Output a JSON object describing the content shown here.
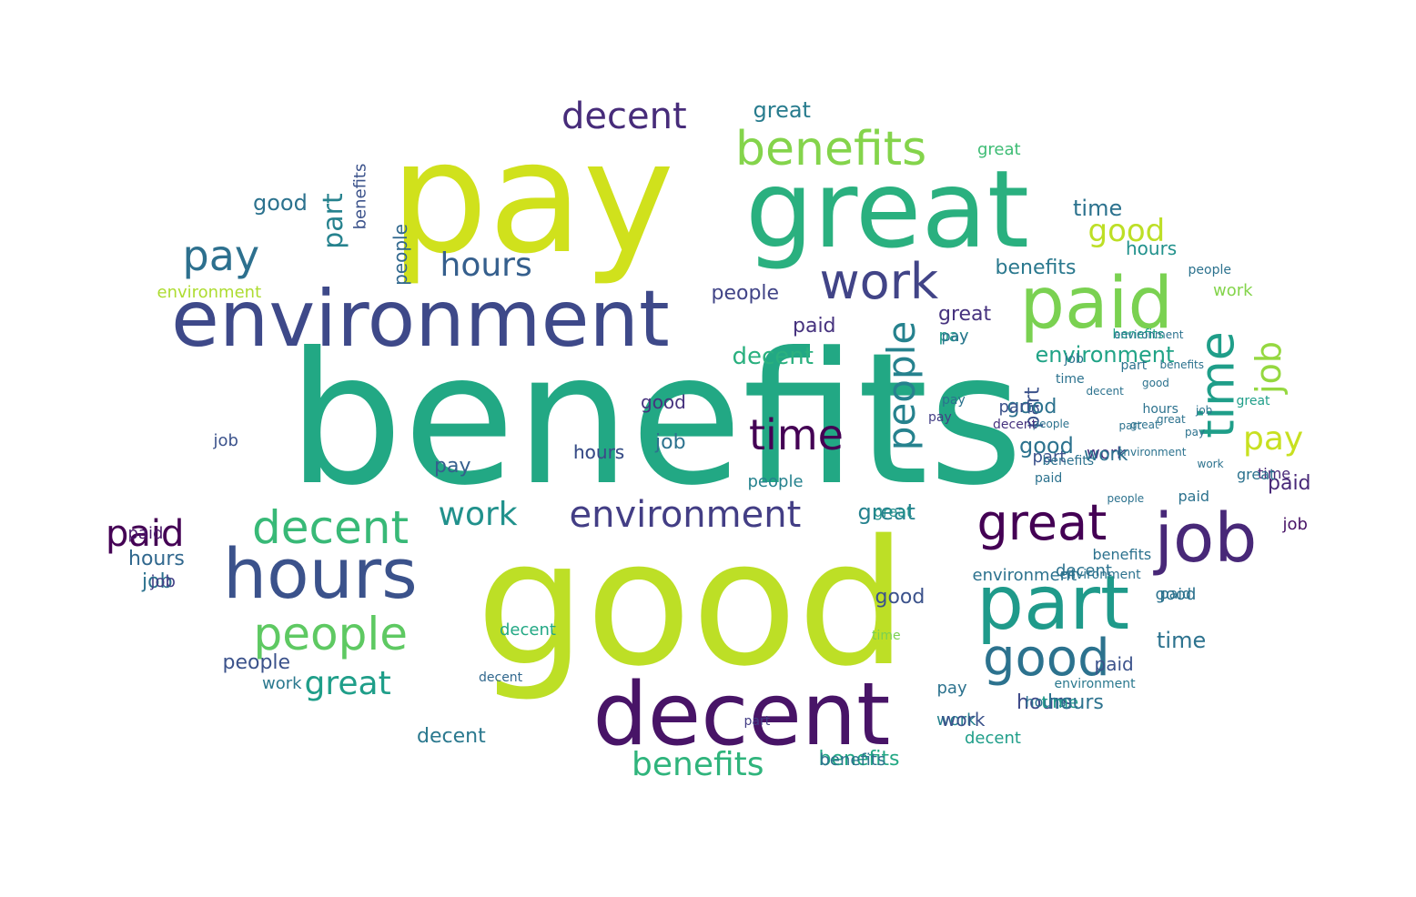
{
  "words": [
    {
      "t": "benefits",
      "c": "#22a884",
      "v": false
    },
    {
      "t": "good",
      "c": "#bddf26",
      "v": false
    },
    {
      "t": "pay",
      "c": "#d0e11c",
      "v": false
    },
    {
      "t": "great",
      "c": "#2ab07f",
      "v": false
    },
    {
      "t": "decent",
      "c": "#481467",
      "v": false
    },
    {
      "t": "environment",
      "c": "#3e4989",
      "v": false
    },
    {
      "t": "paid",
      "c": "#7ad151",
      "v": false
    },
    {
      "t": "job",
      "c": "#482878",
      "v": false
    },
    {
      "t": "part",
      "c": "#1f9a8a",
      "v": false
    },
    {
      "t": "hours",
      "c": "#3b528b",
      "v": false
    },
    {
      "t": "benefits",
      "c": "#84d44b",
      "v": false
    },
    {
      "t": "great",
      "c": "#440154",
      "v": false
    },
    {
      "t": "work",
      "c": "#414487",
      "v": false
    },
    {
      "t": "decent",
      "c": "#38b977",
      "v": false
    },
    {
      "t": "people",
      "c": "#5ec962",
      "v": false
    },
    {
      "t": "environment",
      "c": "#433e85",
      "v": false
    },
    {
      "t": "good",
      "c": "#2c728e",
      "v": false
    },
    {
      "t": "time",
      "c": "#1f9e89",
      "v": true
    },
    {
      "t": "pay",
      "c": "#2d708e",
      "v": false
    },
    {
      "t": "people",
      "c": "#26828e",
      "v": true
    },
    {
      "t": "time",
      "c": "#440154",
      "v": false
    },
    {
      "t": "decent",
      "c": "#472c7a",
      "v": false
    },
    {
      "t": "paid",
      "c": "#440154",
      "v": false
    },
    {
      "t": "hours",
      "c": "#355f8d",
      "v": false
    },
    {
      "t": "work",
      "c": "#21918c",
      "v": false
    },
    {
      "t": "great",
      "c": "#1f9e89",
      "v": false
    },
    {
      "t": "part",
      "c": "#26828e",
      "v": true
    },
    {
      "t": "benefits",
      "c": "#2fb47c",
      "v": false
    },
    {
      "t": "pay",
      "c": "#c8e020",
      "v": false
    },
    {
      "t": "job",
      "c": "#95d840",
      "v": true
    },
    {
      "t": "good",
      "c": "#bddf26",
      "v": false
    },
    {
      "t": "benefits",
      "c": "#22a884",
      "v": false
    },
    {
      "t": "great",
      "c": "#287c8e",
      "v": false
    },
    {
      "t": "decent",
      "c": "#2a788e",
      "v": false
    },
    {
      "t": "hours",
      "c": "#3e4989",
      "v": false
    },
    {
      "t": "environment",
      "c": "#20a386",
      "v": false
    },
    {
      "t": "time",
      "c": "#2c728e",
      "v": false
    },
    {
      "t": "benefits",
      "c": "#2a788e",
      "v": false
    },
    {
      "t": "great",
      "c": "#3dbc74",
      "v": false
    },
    {
      "t": "environment",
      "c": "#addc30",
      "v": false
    },
    {
      "t": "people",
      "c": "#414487",
      "v": false
    },
    {
      "t": "paid",
      "c": "#46327e",
      "v": false
    },
    {
      "t": "decent",
      "c": "#2ab07f",
      "v": false
    },
    {
      "t": "job",
      "c": "#2c728e",
      "v": false
    },
    {
      "t": "pay",
      "c": "#355f8d",
      "v": false
    },
    {
      "t": "hours",
      "c": "#20a386",
      "v": false
    },
    {
      "t": "work",
      "c": "#46327e",
      "v": false
    },
    {
      "t": "great",
      "c": "#26828e",
      "v": false
    },
    {
      "t": "part",
      "c": "#3b528b",
      "v": true
    },
    {
      "t": "people",
      "c": "#31688e",
      "v": true
    },
    {
      "t": "good",
      "c": "#2c728e",
      "v": false
    },
    {
      "t": "pay",
      "c": "#1f9a8a",
      "v": false
    },
    {
      "t": "paid",
      "c": "#48186a",
      "v": false
    },
    {
      "t": "hours",
      "c": "#31688e",
      "v": false
    },
    {
      "t": "decent",
      "c": "#2c728e",
      "v": false
    },
    {
      "t": "great",
      "c": "#46327e",
      "v": false
    },
    {
      "t": "benefits",
      "c": "#3b528b",
      "v": true
    },
    {
      "t": "good",
      "c": "#3b528b",
      "v": false
    },
    {
      "t": "time",
      "c": "#2c728e",
      "v": false
    },
    {
      "t": "job",
      "c": "#2c728e",
      "v": false
    },
    {
      "t": "work",
      "c": "#84d44b",
      "v": false
    },
    {
      "t": "pay",
      "c": "#2c728e",
      "v": false
    },
    {
      "t": "hours",
      "c": "#21918c",
      "v": false
    },
    {
      "t": "part",
      "c": "#3b528b",
      "v": false
    },
    {
      "t": "good",
      "c": "#2c728e",
      "v": false
    },
    {
      "t": "people",
      "c": "#3b528b",
      "v": false
    },
    {
      "t": "paid",
      "c": "#2c728e",
      "v": false
    },
    {
      "t": "decent",
      "c": "#1f9e89",
      "v": false
    },
    {
      "t": "environment",
      "c": "#2c728e",
      "v": false
    },
    {
      "t": "benefits",
      "c": "#1f9e89",
      "v": false
    },
    {
      "t": "work",
      "c": "#2a788e",
      "v": false
    },
    {
      "t": "job",
      "c": "#481467",
      "v": false
    },
    {
      "t": "time",
      "c": "#482878",
      "v": false
    },
    {
      "t": "great",
      "c": "#21918c",
      "v": false
    },
    {
      "t": "pay",
      "c": "#2c728e",
      "v": false
    },
    {
      "t": "paid",
      "c": "#482878",
      "v": false
    },
    {
      "t": "good",
      "c": "#46327e",
      "v": false
    },
    {
      "t": "hours",
      "c": "#3e4989",
      "v": false
    },
    {
      "t": "work",
      "c": "#2c728e",
      "v": false
    },
    {
      "t": "decent",
      "c": "#22a884",
      "v": false
    },
    {
      "t": "people",
      "c": "#2c728e",
      "v": false
    },
    {
      "t": "part",
      "c": "#433e85",
      "v": false
    },
    {
      "t": "benefits",
      "c": "#2c728e",
      "v": false
    },
    {
      "t": "environment",
      "c": "#2a788e",
      "v": false
    },
    {
      "t": "great",
      "c": "#2c728e",
      "v": false
    },
    {
      "t": "job",
      "c": "#3b528b",
      "v": false
    },
    {
      "t": "hours",
      "c": "#2c728e",
      "v": false
    },
    {
      "t": "time",
      "c": "#1f9e89",
      "v": false
    },
    {
      "t": "paid",
      "c": "#3b528b",
      "v": false
    },
    {
      "t": "good",
      "c": "#2c728e",
      "v": false
    },
    {
      "t": "work",
      "c": "#26828e",
      "v": false
    },
    {
      "t": "people",
      "c": "#26828e",
      "v": false
    },
    {
      "t": "decent",
      "c": "#31688e",
      "v": false
    },
    {
      "t": "benefits",
      "c": "#2c728e",
      "v": false
    },
    {
      "t": "job",
      "c": "#433e85",
      "v": false
    },
    {
      "t": "pay",
      "c": "#433e85",
      "v": false
    },
    {
      "t": "great",
      "c": "#1f9e89",
      "v": false
    },
    {
      "t": "environment",
      "c": "#2c728e",
      "v": false
    },
    {
      "t": "part",
      "c": "#3b528b",
      "v": false
    },
    {
      "t": "hours",
      "c": "#2c728e",
      "v": false
    },
    {
      "t": "time",
      "c": "#7ad151",
      "v": false
    },
    {
      "t": "paid",
      "c": "#2c728e",
      "v": false
    },
    {
      "t": "good",
      "c": "#2c728e",
      "v": false
    },
    {
      "t": "work",
      "c": "#3b528b",
      "v": false
    },
    {
      "t": "people",
      "c": "#2c728e",
      "v": false
    },
    {
      "t": "decent",
      "c": "#46327e",
      "v": false
    },
    {
      "t": "benefits",
      "c": "#2c728e",
      "v": false
    },
    {
      "t": "job",
      "c": "#2c728e",
      "v": false
    },
    {
      "t": "pay",
      "c": "#2c728e",
      "v": false
    },
    {
      "t": "great",
      "c": "#2c728e",
      "v": false
    },
    {
      "t": "environment",
      "c": "#2c728e",
      "v": false
    },
    {
      "t": "part",
      "c": "#2c728e",
      "v": false
    },
    {
      "t": "hours",
      "c": "#2c728e",
      "v": false
    },
    {
      "t": "time",
      "c": "#2c728e",
      "v": false
    },
    {
      "t": "paid",
      "c": "#2c728e",
      "v": false
    },
    {
      "t": "good",
      "c": "#2c728e",
      "v": false
    },
    {
      "t": "work",
      "c": "#2c728e",
      "v": false
    },
    {
      "t": "people",
      "c": "#2c728e",
      "v": false
    },
    {
      "t": "decent",
      "c": "#2c728e",
      "v": false
    },
    {
      "t": "benefits",
      "c": "#2c728e",
      "v": false
    },
    {
      "t": "job",
      "c": "#2c728e",
      "v": false
    },
    {
      "t": "pay",
      "c": "#2c728e",
      "v": false
    },
    {
      "t": "great",
      "c": "#2c728e",
      "v": false
    },
    {
      "t": "environment",
      "c": "#2c728e",
      "v": false
    },
    {
      "t": "part",
      "c": "#2c728e",
      "v": false
    },
    {
      "t": "hours",
      "c": "#2c728e",
      "v": false
    },
    {
      "t": "time",
      "c": "#2c728e",
      "v": false
    },
    {
      "t": "paid",
      "c": "#2c728e",
      "v": false
    }
  ]
}
